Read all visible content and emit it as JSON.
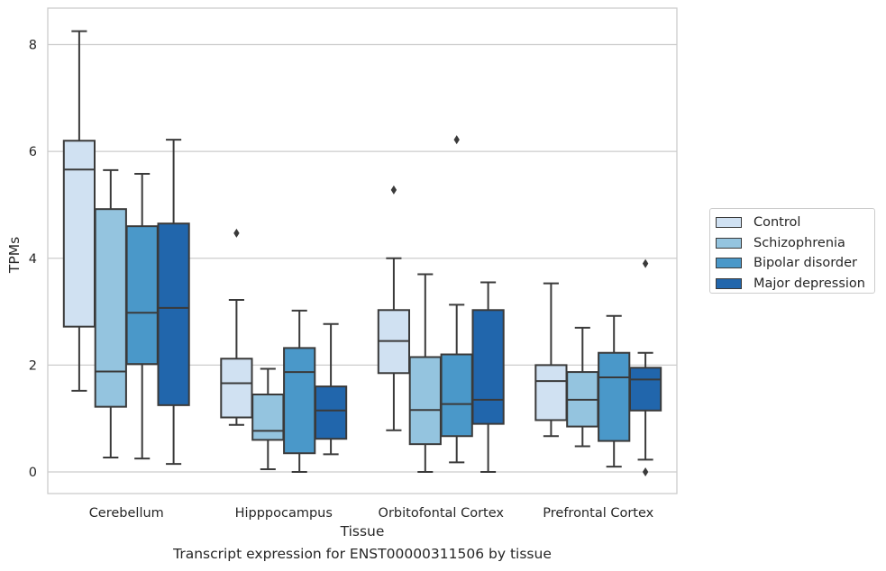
{
  "caption": "Transcript expression for ENST00000311506 by tissue",
  "chart_data": {
    "type": "box",
    "xlabel": "Tissue",
    "ylabel": "TPMs",
    "ylim": [
      -0.4,
      8.7
    ],
    "yticks": [
      0,
      2,
      4,
      6,
      8
    ],
    "grid": "horizontal",
    "legend_position": "outside-right",
    "categories": [
      "Cerebellum",
      "Hipppocampus",
      "Orbitofontal Cortex",
      "Prefrontal Cortex"
    ],
    "series": [
      {
        "name": "Control",
        "color": "#d0e1f2",
        "boxes": [
          {
            "whislo": 1.52,
            "q1": 2.72,
            "med": 5.66,
            "q3": 6.2,
            "whishi": 8.25,
            "fliers": []
          },
          {
            "whislo": 0.88,
            "q1": 1.02,
            "med": 1.66,
            "q3": 2.12,
            "whishi": 3.22,
            "fliers": [
              4.47
            ]
          },
          {
            "whislo": 0.78,
            "q1": 1.85,
            "med": 2.45,
            "q3": 3.03,
            "whishi": 4.0,
            "fliers": [
              5.28
            ]
          },
          {
            "whislo": 0.67,
            "q1": 0.97,
            "med": 1.7,
            "q3": 2.0,
            "whishi": 3.53,
            "fliers": []
          }
        ]
      },
      {
        "name": "Schizophrenia",
        "color": "#94c4df",
        "boxes": [
          {
            "whislo": 0.27,
            "q1": 1.22,
            "med": 1.88,
            "q3": 4.92,
            "whishi": 5.65,
            "fliers": []
          },
          {
            "whislo": 0.05,
            "q1": 0.6,
            "med": 0.77,
            "q3": 1.45,
            "whishi": 1.93,
            "fliers": []
          },
          {
            "whislo": 0.0,
            "q1": 0.52,
            "med": 1.16,
            "q3": 2.15,
            "whishi": 3.7,
            "fliers": []
          },
          {
            "whislo": 0.48,
            "q1": 0.85,
            "med": 1.35,
            "q3": 1.87,
            "whishi": 2.7,
            "fliers": []
          }
        ]
      },
      {
        "name": "Bipolar disorder",
        "color": "#4a98c9",
        "boxes": [
          {
            "whislo": 0.25,
            "q1": 2.02,
            "med": 2.98,
            "q3": 4.6,
            "whishi": 5.58,
            "fliers": []
          },
          {
            "whislo": 0.0,
            "q1": 0.35,
            "med": 1.87,
            "q3": 2.32,
            "whishi": 3.02,
            "fliers": []
          },
          {
            "whislo": 0.18,
            "q1": 0.67,
            "med": 1.27,
            "q3": 2.2,
            "whishi": 3.13,
            "fliers": [
              6.22
            ]
          },
          {
            "whislo": 0.1,
            "q1": 0.58,
            "med": 1.77,
            "q3": 2.23,
            "whishi": 2.92,
            "fliers": []
          }
        ]
      },
      {
        "name": "Major depression",
        "color": "#2166ac",
        "boxes": [
          {
            "whislo": 0.15,
            "q1": 1.25,
            "med": 3.07,
            "q3": 4.65,
            "whishi": 6.22,
            "fliers": []
          },
          {
            "whislo": 0.33,
            "q1": 0.62,
            "med": 1.15,
            "q3": 1.6,
            "whishi": 2.77,
            "fliers": []
          },
          {
            "whislo": 0.0,
            "q1": 0.9,
            "med": 1.35,
            "q3": 3.03,
            "whishi": 3.55,
            "fliers": []
          },
          {
            "whislo": 0.23,
            "q1": 1.15,
            "med": 1.73,
            "q3": 1.95,
            "whishi": 2.23,
            "fliers": [
              0.0,
              3.9
            ]
          }
        ]
      }
    ]
  }
}
